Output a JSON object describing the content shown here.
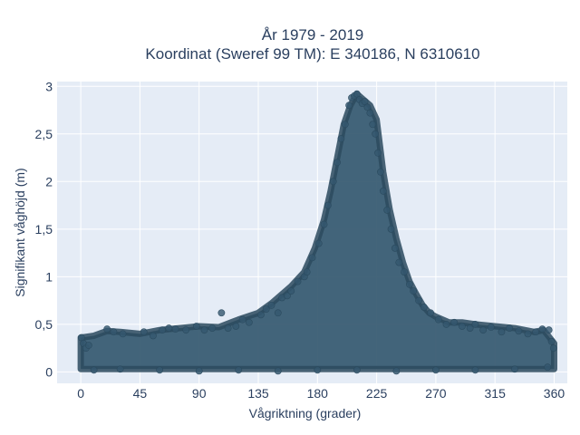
{
  "chart_data": {
    "type": "scatter",
    "title_lines": [
      "År 1979 - 2019",
      "Koordinat (Sweref 99 TM): E 340186, N 6310610"
    ],
    "xlabel": "Vågriktning (grader)",
    "ylabel": "Signifikant våghöjd (m)",
    "xlim": [
      -18,
      370
    ],
    "ylim": [
      -0.12,
      3.05
    ],
    "x_ticks": [
      0,
      45,
      90,
      135,
      180,
      225,
      270,
      315,
      360
    ],
    "x_tick_labels": [
      "0",
      "45",
      "90",
      "135",
      "180",
      "225",
      "270",
      "315",
      "360"
    ],
    "y_ticks": [
      0,
      0.5,
      1,
      1.5,
      2,
      2.5,
      3
    ],
    "y_tick_labels": [
      "0",
      "0,5",
      "1",
      "1,5",
      "2",
      "2,5",
      "3"
    ],
    "grid": true,
    "colors": {
      "plot_background": "#e5ecf6",
      "grid": "#ffffff",
      "marker": "#34586f",
      "marker_outline": "#2b4a5e",
      "text": "#2a3f5f"
    },
    "envelope": [
      [
        0,
        0.36
      ],
      [
        10,
        0.38
      ],
      [
        20,
        0.43
      ],
      [
        30,
        0.42
      ],
      [
        45,
        0.4
      ],
      [
        60,
        0.44
      ],
      [
        75,
        0.46
      ],
      [
        90,
        0.48
      ],
      [
        105,
        0.47
      ],
      [
        120,
        0.55
      ],
      [
        135,
        0.62
      ],
      [
        145,
        0.72
      ],
      [
        160,
        0.9
      ],
      [
        170,
        1.05
      ],
      [
        178,
        1.3
      ],
      [
        185,
        1.6
      ],
      [
        190,
        1.9
      ],
      [
        195,
        2.25
      ],
      [
        200,
        2.6
      ],
      [
        205,
        2.8
      ],
      [
        210,
        2.92
      ],
      [
        215,
        2.86
      ],
      [
        220,
        2.8
      ],
      [
        225,
        2.65
      ],
      [
        230,
        2.1
      ],
      [
        235,
        1.7
      ],
      [
        240,
        1.4
      ],
      [
        245,
        1.15
      ],
      [
        250,
        0.95
      ],
      [
        255,
        0.82
      ],
      [
        260,
        0.7
      ],
      [
        265,
        0.62
      ],
      [
        270,
        0.58
      ],
      [
        280,
        0.52
      ],
      [
        290,
        0.52
      ],
      [
        300,
        0.5
      ],
      [
        315,
        0.48
      ],
      [
        330,
        0.46
      ],
      [
        345,
        0.42
      ],
      [
        352,
        0.44
      ],
      [
        360,
        0.3
      ]
    ],
    "series": [
      {
        "points": [
          [
            0.5,
            0.36
          ],
          [
            2,
            0.3
          ],
          [
            4,
            0.25
          ],
          [
            6,
            0.28
          ],
          [
            20,
            0.45
          ],
          [
            25,
            0.42
          ],
          [
            32,
            0.4
          ],
          [
            48,
            0.42
          ],
          [
            55,
            0.38
          ],
          [
            62,
            0.44
          ],
          [
            67,
            0.46
          ],
          [
            72,
            0.45
          ],
          [
            80,
            0.44
          ],
          [
            88,
            0.48
          ],
          [
            94,
            0.44
          ],
          [
            100,
            0.46
          ],
          [
            107,
            0.62
          ],
          [
            112,
            0.46
          ],
          [
            118,
            0.48
          ],
          [
            123,
            0.55
          ],
          [
            128,
            0.52
          ],
          [
            137,
            0.6
          ],
          [
            141,
            0.66
          ],
          [
            145,
            0.7
          ],
          [
            150,
            0.62
          ],
          [
            153,
            0.78
          ],
          [
            157,
            0.8
          ],
          [
            160,
            0.85
          ],
          [
            165,
            0.95
          ],
          [
            170,
            1.0
          ],
          [
            172,
            1.05
          ],
          [
            176,
            1.2
          ],
          [
            181,
            1.35
          ],
          [
            185,
            1.55
          ],
          [
            188,
            1.75
          ],
          [
            192,
            2.0
          ],
          [
            195,
            2.2
          ],
          [
            198,
            2.45
          ],
          [
            201,
            2.6
          ],
          [
            204,
            2.8
          ],
          [
            206,
            2.88
          ],
          [
            208,
            2.9
          ],
          [
            210,
            2.92
          ],
          [
            212,
            2.86
          ],
          [
            214,
            2.82
          ],
          [
            216,
            2.84
          ],
          [
            218,
            2.78
          ],
          [
            220,
            2.72
          ],
          [
            222,
            2.6
          ],
          [
            224,
            2.5
          ],
          [
            226,
            2.3
          ],
          [
            228,
            2.1
          ],
          [
            230,
            1.9
          ],
          [
            233,
            1.7
          ],
          [
            236,
            1.5
          ],
          [
            239,
            1.3
          ],
          [
            242,
            1.15
          ],
          [
            246,
            1.05
          ],
          [
            250,
            0.92
          ],
          [
            253,
            0.85
          ],
          [
            257,
            0.75
          ],
          [
            261,
            0.68
          ],
          [
            266,
            0.62
          ],
          [
            272,
            0.55
          ],
          [
            278,
            0.5
          ],
          [
            284,
            0.52
          ],
          [
            290,
            0.48
          ],
          [
            296,
            0.46
          ],
          [
            300,
            0.5
          ],
          [
            306,
            0.44
          ],
          [
            312,
            0.47
          ],
          [
            320,
            0.42
          ],
          [
            326,
            0.46
          ],
          [
            333,
            0.43
          ],
          [
            340,
            0.4
          ],
          [
            346,
            0.42
          ],
          [
            351,
            0.45
          ],
          [
            356,
            0.44
          ],
          [
            358,
            0.32
          ],
          [
            359.5,
            0.25
          ],
          [
            10,
            0.02
          ],
          [
            30,
            0.03
          ],
          [
            60,
            0.02
          ],
          [
            90,
            0.01
          ],
          [
            120,
            0.02
          ],
          [
            150,
            0.01
          ],
          [
            180,
            0.02
          ],
          [
            210,
            0.02
          ],
          [
            240,
            0.01
          ],
          [
            270,
            0.02
          ],
          [
            300,
            0.02
          ],
          [
            330,
            0.03
          ],
          [
            355,
            0.05
          ]
        ]
      }
    ]
  }
}
